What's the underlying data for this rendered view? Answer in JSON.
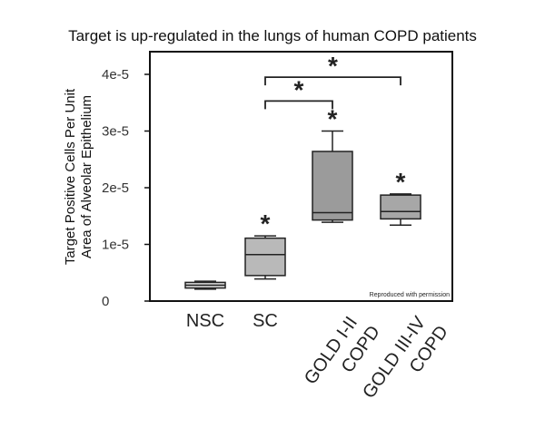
{
  "chart_data": {
    "type": "box",
    "title": "Target is up-regulated in the lungs of human COPD patients",
    "ylabel_lines": [
      "Target Positive Cells Per Unit",
      "Area of Alveolar Epithelium"
    ],
    "ylim": [
      0,
      4.4e-05
    ],
    "yticks": [
      {
        "value": 0,
        "label": "0"
      },
      {
        "value": 1e-05,
        "label": "1e-5"
      },
      {
        "value": 2e-05,
        "label": "2e-5"
      },
      {
        "value": 3e-05,
        "label": "3e-5"
      },
      {
        "value": 4e-05,
        "label": "4e-5"
      }
    ],
    "categories": [
      {
        "lines": [
          "NSC"
        ],
        "rotated": false
      },
      {
        "lines": [
          "SC"
        ],
        "rotated": false
      },
      {
        "lines": [
          "GOLD I-II",
          "COPD"
        ],
        "rotated": true
      },
      {
        "lines": [
          "GOLD III-IV",
          "COPD"
        ],
        "rotated": true
      }
    ],
    "boxes": [
      {
        "category": "NSC",
        "min": 2.1e-06,
        "q1": 2.3e-06,
        "median": 2.8e-06,
        "q3": 3.3e-06,
        "max": 3.5e-06,
        "fill": "#d8d8d8",
        "star": false
      },
      {
        "category": "SC",
        "min": 3.9e-06,
        "q1": 4.5e-06,
        "median": 8.2e-06,
        "q3": 1.11e-05,
        "max": 1.15e-05,
        "fill": "#b9b9b9",
        "star": true
      },
      {
        "category": "GOLD I-II COPD",
        "min": 1.39e-05,
        "q1": 1.43e-05,
        "median": 1.56e-05,
        "q3": 2.64e-05,
        "max": 3e-05,
        "fill": "#9b9b9b",
        "star": true
      },
      {
        "category": "GOLD III-IV COPD",
        "min": 1.34e-05,
        "q1": 1.45e-05,
        "median": 1.58e-05,
        "q3": 1.87e-05,
        "max": 1.89e-05,
        "fill": "#a7a7a7",
        "star": true
      }
    ],
    "brackets": [
      {
        "from": "SC",
        "to": "GOLD I-II COPD",
        "level": 3.53e-05,
        "label": "*"
      },
      {
        "from": "SC",
        "to": "GOLD III-IV COPD",
        "level": 3.95e-05,
        "label": "*"
      }
    ],
    "star_symbol": "*",
    "note": "Reproduced with permission"
  }
}
